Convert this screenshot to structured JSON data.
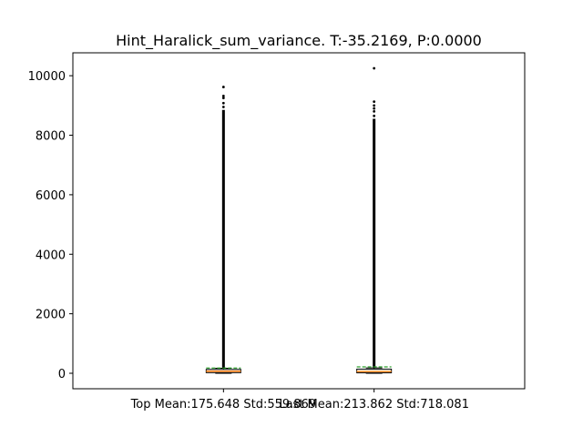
{
  "chart_data": {
    "type": "box",
    "title": "Hint_Haralick_sum_variance. T:-35.2169, P:0.0000",
    "xlabel": "",
    "ylabel": "",
    "categories": [
      "Top Mean:175.648 Std:559.869",
      "Last Mean:213.862 Std:718.081"
    ],
    "ylim": [
      -520,
      10770
    ],
    "yticks": [
      0,
      2000,
      4000,
      6000,
      8000,
      10000
    ],
    "boxes": [
      {
        "category": "Top Mean:175.648 Std:559.869",
        "q1": 20,
        "median": 70,
        "q3": 130,
        "whisker_low": 0,
        "whisker_high": 170,
        "mean": 175.648,
        "outliers_range": [
          170,
          8850
        ],
        "outliers_sparse": [
          8950,
          9080,
          9250,
          9320,
          9620
        ]
      },
      {
        "category": "Last Mean:213.862 Std:718.081",
        "q1": 15,
        "median": 60,
        "q3": 140,
        "whisker_low": 0,
        "whisker_high": 180,
        "mean": 213.862,
        "outliers_range": [
          180,
          8550
        ],
        "outliers_sparse": [
          8650,
          8800,
          8900,
          9000,
          9130,
          10250
        ]
      }
    ],
    "colors": {
      "median": "#ff7f0e",
      "mean": "#2ca02c",
      "box": "#000000",
      "outlier": "#000000"
    }
  }
}
